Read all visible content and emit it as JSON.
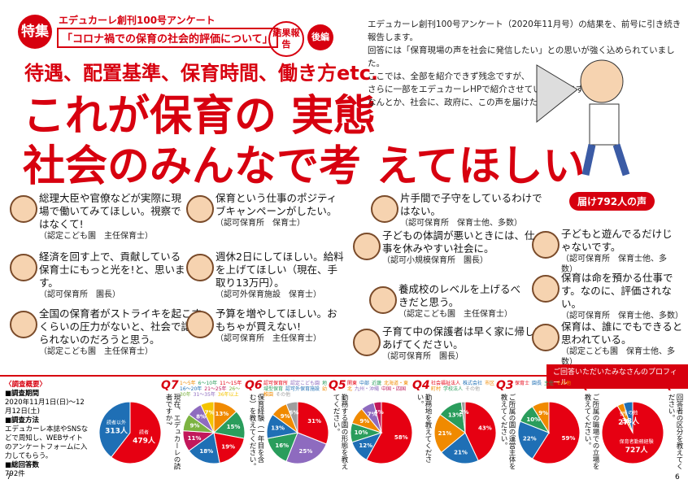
{
  "header": {
    "tag": "特集",
    "series": "エデュカーレ創刊100号アンケート",
    "title": "「コロナ禍での保育の社会的評価について」",
    "report": "結果報告",
    "part": "後編"
  },
  "subhead": "待遇、配置基準、保育時間、働き方etc.",
  "headline": [
    "これが保育の 実態",
    "社会のみんなで考 えてほしい"
  ],
  "intro": [
    "エデュカーレ創刊100号アンケート（2020年11月号）の結果を、前号に引き続き報告します。",
    "回答には「保育現場の声を社会に発信したい」との思いが強く込められていました。",
    "ここでは、全部を紹介できず残念ですが、",
    "さらに一部をエデュカーレHPで紹介させていただきます。",
    "なんとか、社会に、政府に、この声を届けたい。"
  ],
  "badge": "届け792人の声",
  "quotes": [
    {
      "text": "総理大臣や官僚などが実際に現場で働いてみてほしい。視察ではなくて!",
      "source": "（認定こども園　主任保育士）"
    },
    {
      "text": "保育という仕事のポジティブキャンペーンがしたい。",
      "source": "（認可保育所　保育士）"
    },
    {
      "text": "経済を回す上で、貢献している保育士にもっと光を!と、思います。",
      "source": "（認可保育所　園長）"
    },
    {
      "text": "週休2日にしてほしい。給料を上げてほしい（現在、手取り13万円）。",
      "source": "（認可外保育施設　保育士）"
    },
    {
      "text": "全国の保育者がストライキを起こすくらいの圧力がないと、社会で認められないのだろうと思う。",
      "source": "（認定こども園　主任保育士）"
    },
    {
      "text": "予算を増やしてほしい。おもちゃが買えない!",
      "source": "（認可保育所　主任保育士）"
    },
    {
      "text": "片手間で子守をしているわけではない。",
      "source": "（認可保育所　保育士他、多数）"
    },
    {
      "text": "子どもと遊んでるだけじゃないです。",
      "source": "（認可保育所　保育士他、多数）"
    },
    {
      "text": "子どもの体調が悪いときには、仕事を休みやすい社会に。",
      "source": "（認可小規模保育所　園長）"
    },
    {
      "text": "養成校のレベルを上げるべきだと思う。",
      "source": "（認定こども園　主任保育士）"
    },
    {
      "text": "保育は命を預かる仕事です。なのに、評価されない。",
      "source": "（認可保育所　保育士他、多数）"
    },
    {
      "text": "子育て中の保護者は早く家に帰してあげてください。",
      "source": "（認可保育所　園長）"
    },
    {
      "text": "保育は、誰にでもできると思われている。",
      "source": "（認定こども園　保育士他、多数）"
    }
  ],
  "profile": {
    "title": "ご回答いただいたみなさんのプロフィール",
    "overview": {
      "heading": "〈調査概要〉",
      "period_label": "■調査期間",
      "period": "2020年11月1日(日)～12月12日(土)",
      "method_label": "■調査方法",
      "method": "エデュカーレ本誌やSNSなどで周知し、WEBサイトのアンケートフォームに入力してもらう。",
      "total_label": "■総回答数",
      "total": "792件"
    },
    "charts": [
      {
        "q": "Q7",
        "question": "現在、エデュカーレの読者ですか?",
        "type": "pie",
        "categories": [
          "読者",
          "読者以外"
        ],
        "values": [
          479,
          313
        ],
        "value_labels": [
          "479人",
          "313人"
        ],
        "colors": [
          "#e60012",
          "#1f6fb5"
        ]
      },
      {
        "q": "Q6",
        "question": "保育経験（一年目を含む）を教えてください。",
        "type": "pie",
        "categories": [
          "1～5年",
          "6～10年",
          "11～15年",
          "16～20年",
          "21～25年",
          "26～30年",
          "31～35年",
          "36年以上"
        ],
        "values": [
          13,
          15,
          19,
          18,
          11,
          9,
          8,
          7
        ],
        "value_labels": [
          "13%",
          "15%",
          "19%",
          "18%",
          "11%",
          "9%",
          "8%",
          "7%"
        ],
        "colors": [
          "#f08a00",
          "#2a9d5c",
          "#e60012",
          "#1f6fb5",
          "#c2185b",
          "#7cb342",
          "#8e6bbf",
          "#f4c400"
        ]
      },
      {
        "q": "Q5",
        "question": "勤務する園の形態を教えてください。",
        "type": "pie",
        "categories": [
          "認可保育所",
          "認定こども園",
          "地域型保育",
          "認可外保育施設",
          "幼稚園",
          "その他"
        ],
        "values": [
          31,
          25,
          16,
          13,
          9,
          6
        ],
        "value_labels": [
          "31%",
          "25%",
          "16%",
          "13%",
          "9%",
          "6%"
        ],
        "colors": [
          "#e60012",
          "#8e6bbf",
          "#2a9d5c",
          "#1f6fb5",
          "#f08a00",
          "#9e9e9e"
        ]
      },
      {
        "q": "Q4",
        "question": "勤務地を教えてください。",
        "type": "pie",
        "categories": [
          "関東",
          "中部",
          "近畿",
          "北海道・東北",
          "九州・沖縄",
          "中国・四国"
        ],
        "values": [
          58,
          12,
          10,
          9,
          7,
          4
        ],
        "value_labels": [
          "58%",
          "12%",
          "10%",
          "9%",
          "7%",
          "4%"
        ],
        "colors": [
          "#e60012",
          "#1f6fb5",
          "#2a9d5c",
          "#f08a00",
          "#8e6bbf",
          "#c2185b"
        ]
      },
      {
        "q": "Q3",
        "question": "ご所属の園の運営主体を教えてください。",
        "type": "pie",
        "categories": [
          "社会福祉法人",
          "株式会社",
          "市区町村",
          "学校法人",
          "その他"
        ],
        "values": [
          43,
          21,
          21,
          13,
          2
        ],
        "value_labels": [
          "43%",
          "21%",
          "21%",
          "13%",
          "2%"
        ],
        "colors": [
          "#e60012",
          "#1f6fb5",
          "#f08a00",
          "#2a9d5c",
          "#9e9e9e"
        ]
      },
      {
        "q": "Q2",
        "question": "ご所属の職場での立場を教えてください。",
        "type": "pie",
        "categories": [
          "保育士",
          "園長",
          "主任",
          "その他"
        ],
        "values": [
          59,
          22,
          10,
          9
        ],
        "value_labels": [
          "59%",
          "22%",
          "10%",
          "9%"
        ],
        "colors": [
          "#e60012",
          "#1f6fb5",
          "#2a9d5c",
          "#f08a00"
        ]
      },
      {
        "q": "Q1",
        "question": "回答者の区分を教えてください。",
        "type": "pie",
        "categories": [
          "保育者勤務経験",
          "保育者",
          "その他"
        ],
        "values": [
          727,
          27,
          38
        ],
        "value_labels": [
          "727人",
          "27人",
          "38人"
        ],
        "colors": [
          "#e60012",
          "#f08a00",
          "#1f6fb5"
        ]
      }
    ]
  },
  "page_numbers": [
    "7",
    "6"
  ]
}
